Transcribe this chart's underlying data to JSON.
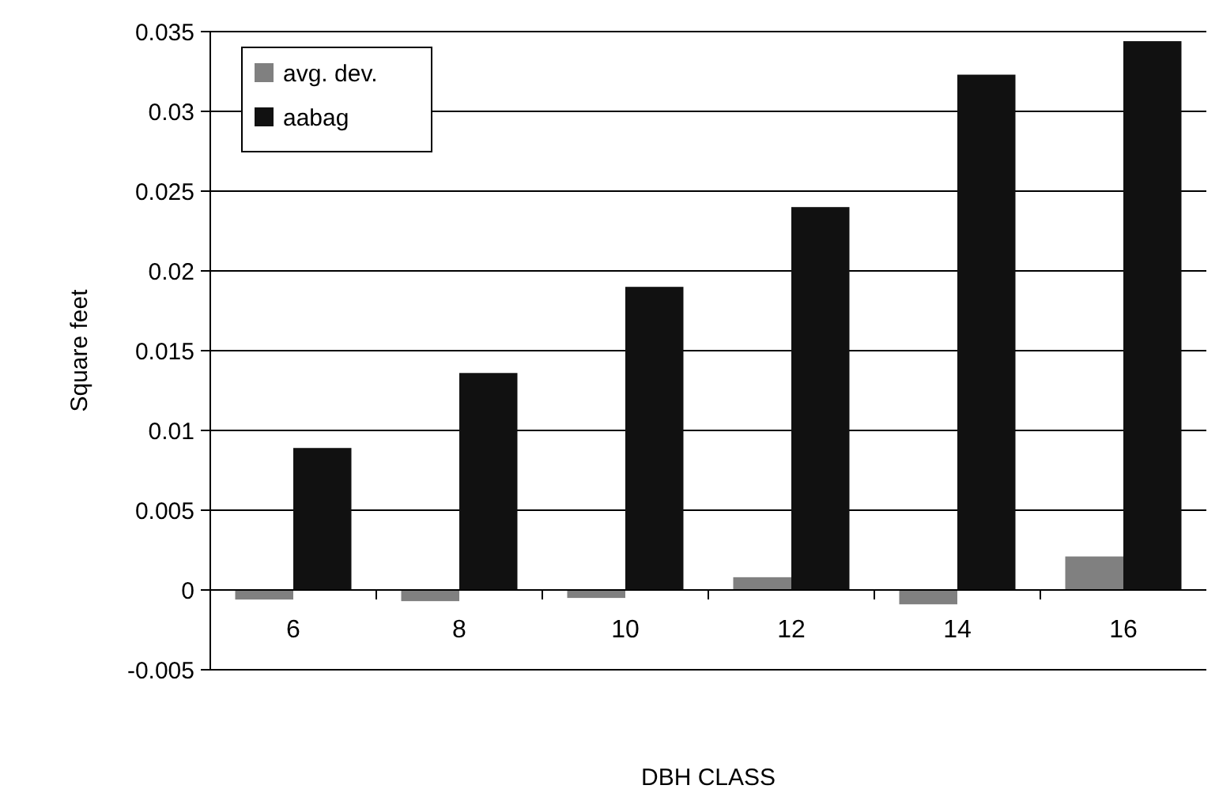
{
  "chart_data": {
    "type": "bar",
    "xlabel": "DBH CLASS",
    "ylabel": "Square feet",
    "categories": [
      "6",
      "8",
      "10",
      "12",
      "14",
      "16"
    ],
    "series": [
      {
        "name": "avg. dev.",
        "color": "#808080",
        "values": [
          -0.0006,
          -0.0007,
          -0.0005,
          0.0008,
          -0.0009,
          0.0021
        ]
      },
      {
        "name": "aabag",
        "color": "#111111",
        "values": [
          0.0089,
          0.0136,
          0.019,
          0.024,
          0.0323,
          0.0344
        ]
      }
    ],
    "ylim": [
      -0.005,
      0.035
    ],
    "yticks": [
      -0.005,
      0,
      0.005,
      0.01,
      0.015,
      0.02,
      0.025,
      0.03,
      0.035
    ],
    "grid": "y",
    "legend": "top left"
  }
}
